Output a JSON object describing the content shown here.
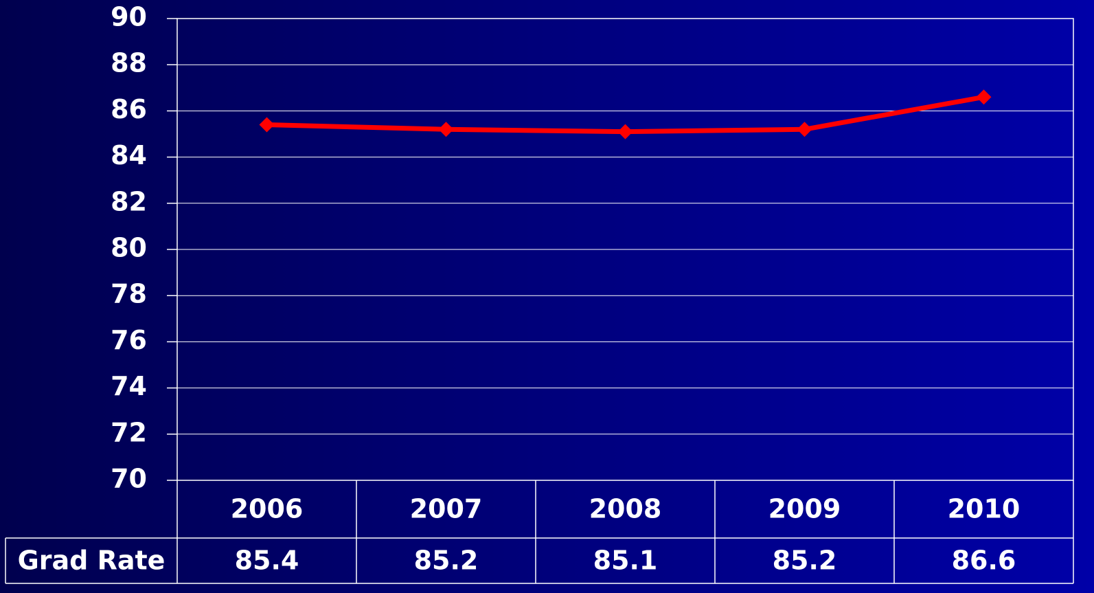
{
  "chart_data": {
    "type": "line",
    "categories": [
      "2006",
      "2007",
      "2008",
      "2009",
      "2010"
    ],
    "series": [
      {
        "name": "Grad Rate",
        "color": "#ff0000",
        "values": [
          85.4,
          85.2,
          85.1,
          85.2,
          86.6
        ]
      }
    ],
    "ylim": [
      70,
      90
    ],
    "yticks": [
      70,
      72,
      74,
      76,
      78,
      80,
      82,
      84,
      86,
      88,
      90
    ],
    "grid": true
  }
}
